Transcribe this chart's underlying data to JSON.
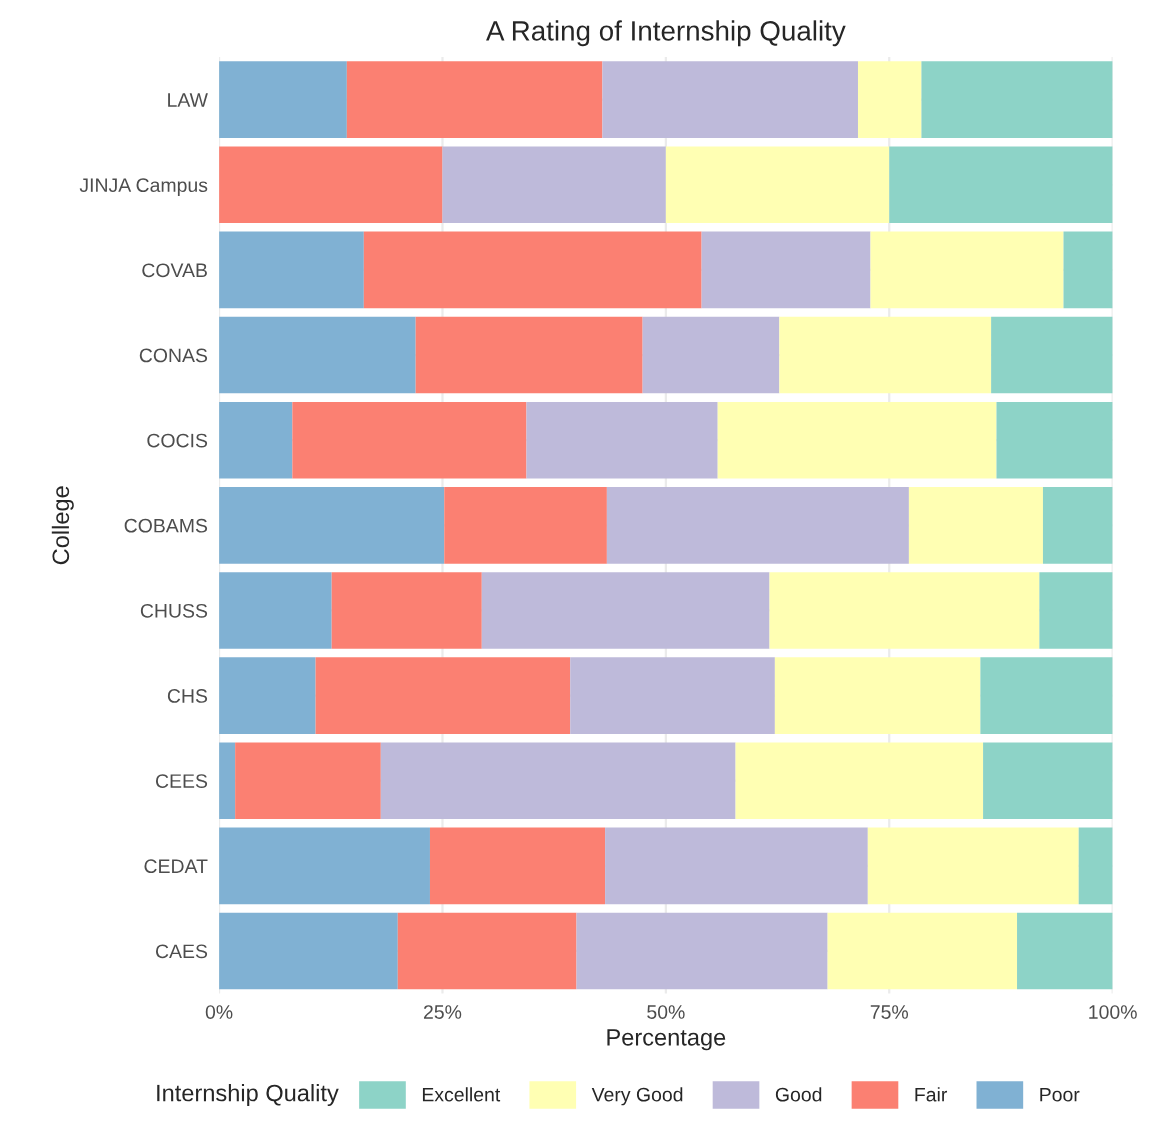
{
  "chart_data": {
    "type": "bar",
    "orientation": "horizontal",
    "stacked": true,
    "title": "A Rating of Internship Quality",
    "xlabel": "Percentage",
    "ylabel": "College",
    "legend_title": "Internship Quality",
    "legend": "bottom",
    "grid": true,
    "categories": [
      "LAW",
      "JINJA Campus",
      "COVAB",
      "CONAS",
      "COCIS",
      "COBAMS",
      "CHUSS",
      "CHS",
      "CEES",
      "CEDAT",
      "CAES"
    ],
    "xlim": [
      0,
      100
    ],
    "xticks": [
      {
        "value": 0,
        "label": "0%"
      },
      {
        "value": 25,
        "label": "25%"
      },
      {
        "value": 50,
        "label": "50%"
      },
      {
        "value": 75,
        "label": "75%"
      },
      {
        "value": 100,
        "label": "100%"
      }
    ],
    "series": [
      {
        "name": "Poor",
        "color": "#80b1d3",
        "values": [
          14.3,
          0,
          16.2,
          22.0,
          8.2,
          25.2,
          12.6,
          10.8,
          1.8,
          23.6,
          20.0
        ]
      },
      {
        "name": "Fair",
        "color": "#fb8072",
        "values": [
          28.6,
          25,
          37.8,
          25.4,
          26.2,
          18.2,
          16.8,
          28.5,
          16.3,
          19.6,
          20.0
        ]
      },
      {
        "name": "Good",
        "color": "#bebada",
        "values": [
          28.6,
          25,
          18.9,
          15.3,
          21.4,
          33.8,
          32.2,
          22.9,
          39.7,
          29.4,
          28.1
        ]
      },
      {
        "name": "Very Good",
        "color": "#ffffb3",
        "values": [
          7.1,
          25,
          21.6,
          23.7,
          31.2,
          15.0,
          30.2,
          23.0,
          27.7,
          23.6,
          21.2
        ]
      },
      {
        "name": "Excellent",
        "color": "#8dd3c7",
        "values": [
          21.4,
          25,
          5.5,
          13.6,
          13.0,
          7.8,
          8.2,
          14.8,
          14.5,
          3.8,
          10.7
        ]
      }
    ]
  }
}
